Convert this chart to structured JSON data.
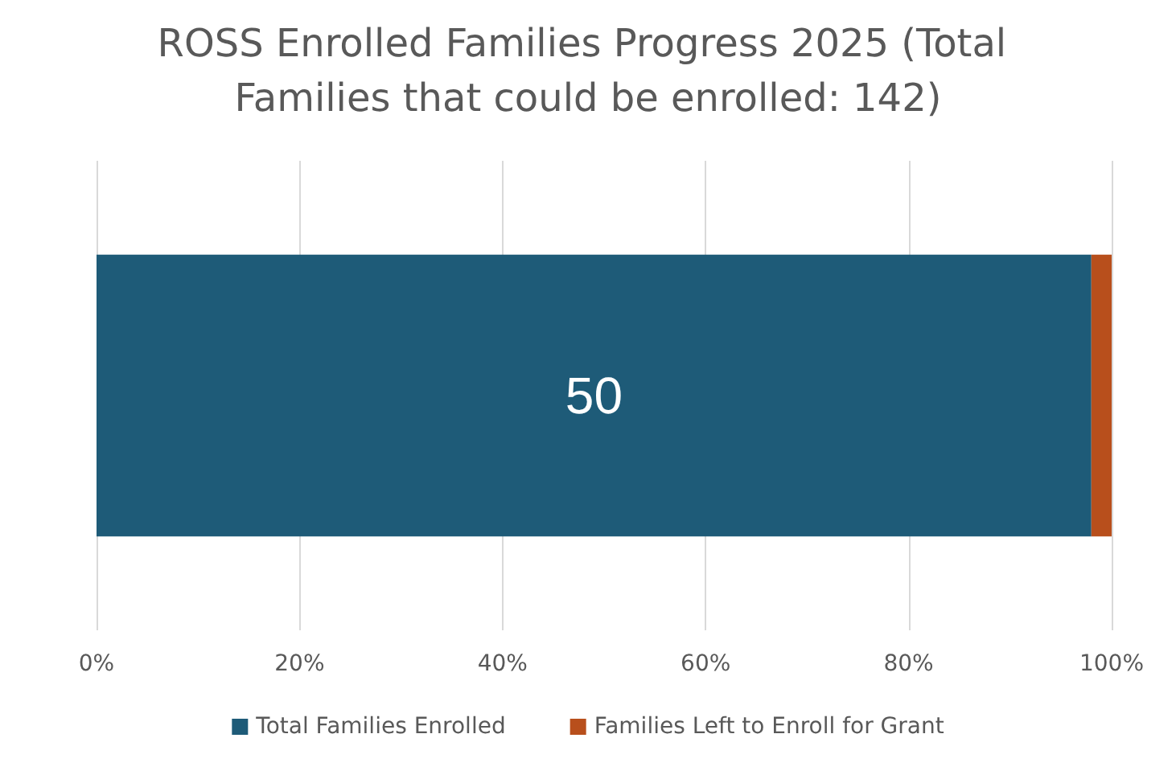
{
  "chart_data": {
    "type": "bar",
    "title": "ROSS Enrolled Families Progress 2025 (Total Families that could be enrolled: 142)",
    "orientation": "horizontal",
    "stacked": true,
    "categories": [
      null
    ],
    "series": [
      {
        "name": "Total Families Enrolled",
        "color": "#1e5b78",
        "values": [
          98
        ]
      },
      {
        "name": "Families Left to Enroll for Grant",
        "color": "#b84f1c",
        "values": [
          2
        ]
      }
    ],
    "xlim": [
      0,
      100
    ],
    "xticks": [
      {
        "value": 0,
        "label": "0%"
      },
      {
        "value": 20,
        "label": "20%"
      },
      {
        "value": 40,
        "label": "40%"
      },
      {
        "value": 60,
        "label": "60%"
      },
      {
        "value": 80,
        "label": "80%"
      },
      {
        "value": 100,
        "label": "100%"
      }
    ],
    "grid": "x",
    "legend": "bottom",
    "annotations": [
      "50"
    ]
  }
}
